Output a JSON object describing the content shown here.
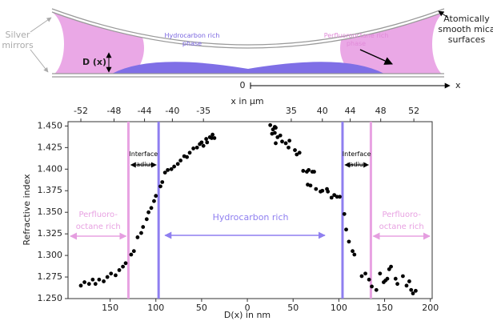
{
  "diagram": {
    "mirrors": [
      "Silver",
      "mirrors"
    ],
    "gap": "D (x)",
    "hydrocarbon": [
      "Hydrocarbon rich",
      "phase"
    ],
    "perfluoro": [
      "Perfluorooctane rich",
      "phase"
    ],
    "mica": [
      "Atomically",
      "smooth mica",
      "surfaces"
    ],
    "origin": "0",
    "axis": "x"
  },
  "chart_data": {
    "type": "scatter",
    "x2label": "x in μm",
    "xlabel": "D(x) in nm",
    "ylabel": "Refractive index",
    "x": [
      -182,
      -178,
      -173,
      -169,
      -166,
      -162,
      -157,
      -153,
      -149,
      -144,
      -140,
      -136,
      -133,
      -127,
      -124,
      -120,
      -116,
      -114,
      -110,
      -108,
      -105,
      -102,
      -100,
      -95,
      -93,
      -90,
      -87,
      -83,
      -80,
      -76,
      -73,
      -69,
      -66,
      -63,
      -59,
      -55,
      -52,
      -50,
      -48,
      -45,
      -44,
      -41,
      -39,
      -38,
      -36,
      25,
      28,
      30,
      31,
      27,
      30,
      33,
      31,
      36,
      38,
      42,
      45,
      46,
      52,
      54,
      57,
      61,
      65,
      67,
      71,
      73,
      66,
      69,
      75,
      80,
      82,
      87,
      88,
      92,
      95,
      98,
      101,
      106,
      108,
      111,
      115,
      117,
      125,
      129,
      133,
      136,
      141,
      145,
      149,
      151,
      155,
      157,
      153,
      162,
      164,
      170,
      174,
      177,
      181,
      184,
      179
    ],
    "values": [
      1.265,
      1.269,
      1.267,
      1.272,
      1.267,
      1.272,
      1.27,
      1.275,
      1.279,
      1.277,
      1.283,
      1.287,
      1.291,
      1.301,
      1.305,
      1.321,
      1.326,
      1.333,
      1.342,
      1.35,
      1.355,
      1.363,
      1.369,
      1.38,
      1.385,
      1.396,
      1.399,
      1.4,
      1.403,
      1.406,
      1.41,
      1.415,
      1.414,
      1.419,
      1.424,
      1.425,
      1.429,
      1.431,
      1.427,
      1.435,
      1.431,
      1.437,
      1.436,
      1.44,
      1.436,
      1.451,
      1.446,
      1.449,
      1.448,
      1.441,
      1.442,
      1.437,
      1.43,
      1.439,
      1.432,
      1.43,
      1.425,
      1.433,
      1.422,
      1.417,
      1.419,
      1.398,
      1.397,
      1.399,
      1.397,
      1.397,
      1.382,
      1.381,
      1.377,
      1.374,
      1.375,
      1.377,
      1.374,
      1.367,
      1.37,
      1.368,
      1.368,
      1.348,
      1.33,
      1.316,
      1.305,
      1.301,
      1.276,
      1.279,
      1.272,
      1.264,
      1.26,
      1.279,
      1.269,
      1.271,
      1.284,
      1.287,
      1.273,
      1.273,
      1.267,
      1.276,
      1.265,
      1.27,
      1.256,
      1.259,
      1.26
    ],
    "color": "#000000",
    "xlim": [
      -196,
      202
    ],
    "xticks": [
      {
        "value": -150,
        "label": "150"
      },
      {
        "value": -100,
        "label": "100"
      },
      {
        "value": -50,
        "label": "50"
      },
      0,
      50,
      100,
      150,
      200
    ],
    "x2ticks": [
      -52,
      -48,
      -44,
      -40,
      -35,
      35,
      40,
      44,
      48,
      52
    ],
    "ylim": [
      1.25,
      1.455
    ],
    "yticks": [
      {
        "value": 1.45,
        "label": "1.450"
      },
      1.425,
      {
        "value": 1.4,
        "label": "1.400"
      },
      1.375,
      {
        "value": 1.35,
        "label": "1.350"
      },
      1.325,
      {
        "value": 1.3,
        "label": "1.300"
      },
      1.275,
      {
        "value": 1.25,
        "label": "1.250"
      }
    ],
    "vlines": [
      {
        "value": -130,
        "color": "#e8a2e2"
      },
      {
        "value": -97,
        "color": "#8f7ff0"
      },
      {
        "value": 104,
        "color": "#8f7ff0"
      },
      {
        "value": 135,
        "color": "#e8a2e2"
      }
    ],
    "annotations": {
      "interface_left": [
        "Interface",
        "radius"
      ],
      "interface_right": [
        "Interface",
        "radius"
      ],
      "perfluoro_left": [
        "Perfluoro-",
        "octane rich"
      ],
      "hydrocarbon": "Hydrocarbon rich",
      "perfluoro_right": [
        "Perfluoro-",
        "octane rich"
      ]
    }
  }
}
